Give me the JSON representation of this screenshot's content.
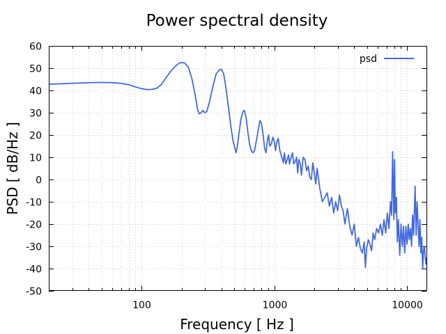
{
  "chart_data": {
    "type": "line",
    "title": "Power spectral density",
    "xlabel": "Frequency [ Hz ]",
    "ylabel": "PSD [ dB/Hz ]",
    "x_scale": "log",
    "xlim": [
      20,
      14000
    ],
    "ylim": [
      -50,
      60
    ],
    "x_ticks": [
      100,
      1000,
      10000
    ],
    "x_tick_labels": [
      "100",
      "1000",
      "10000"
    ],
    "y_ticks": [
      -50,
      -40,
      -30,
      -20,
      -10,
      0,
      10,
      20,
      30,
      40,
      50,
      60
    ],
    "y_tick_labels": [
      "-50",
      "-40",
      "-30",
      "-20",
      "-10",
      "0",
      "10",
      "20",
      "30",
      "40",
      "50",
      "60"
    ],
    "grid": true,
    "legend_position": "top-right",
    "series": [
      {
        "name": "psd",
        "color": "#4169e1",
        "points": [
          [
            20,
            42.8
          ],
          [
            30,
            43.2
          ],
          [
            40,
            43.5
          ],
          [
            50,
            43.6
          ],
          [
            60,
            43.5
          ],
          [
            70,
            43.2
          ],
          [
            80,
            42.6
          ],
          [
            90,
            41.6
          ],
          [
            100,
            40.8
          ],
          [
            110,
            40.4
          ],
          [
            120,
            40.5
          ],
          [
            130,
            41.0
          ],
          [
            140,
            42.5
          ],
          [
            150,
            45.0
          ],
          [
            165,
            48.5
          ],
          [
            180,
            51.0
          ],
          [
            195,
            52.5
          ],
          [
            210,
            52.4
          ],
          [
            225,
            50.5
          ],
          [
            240,
            45.0
          ],
          [
            255,
            37.0
          ],
          [
            265,
            31.0
          ],
          [
            272,
            29.5
          ],
          [
            280,
            30.0
          ],
          [
            290,
            31.0
          ],
          [
            300,
            30.0
          ],
          [
            310,
            30.5
          ],
          [
            325,
            35.0
          ],
          [
            345,
            42.0
          ],
          [
            365,
            47.5
          ],
          [
            385,
            49.3
          ],
          [
            400,
            49.5
          ],
          [
            415,
            47.5
          ],
          [
            430,
            42.0
          ],
          [
            450,
            33.0
          ],
          [
            470,
            24.0
          ],
          [
            490,
            17.0
          ],
          [
            505,
            14.0
          ],
          [
            515,
            12.0
          ],
          [
            525,
            14.5
          ],
          [
            540,
            20.0
          ],
          [
            560,
            27.0
          ],
          [
            580,
            30.5
          ],
          [
            595,
            31.0
          ],
          [
            612,
            28.0
          ],
          [
            630,
            22.0
          ],
          [
            650,
            16.0
          ],
          [
            670,
            13.0
          ],
          [
            690,
            12.0
          ],
          [
            710,
            13.0
          ],
          [
            735,
            18.0
          ],
          [
            760,
            23.0
          ],
          [
            780,
            26.5
          ],
          [
            800,
            25.0
          ],
          [
            820,
            21.0
          ],
          [
            845,
            14.0
          ],
          [
            865,
            12.0
          ],
          [
            890,
            18.0
          ],
          [
            905,
            20.0
          ],
          [
            925,
            15.0
          ],
          [
            950,
            16.0
          ],
          [
            975,
            19.0
          ],
          [
            1000,
            17.0
          ],
          [
            1020,
            13.0
          ],
          [
            1045,
            17.0
          ],
          [
            1070,
            18.5
          ],
          [
            1100,
            13.0
          ],
          [
            1140,
            10.0
          ],
          [
            1170,
            7.5
          ],
          [
            1190,
            12.0
          ],
          [
            1220,
            7.0
          ],
          [
            1250,
            9.0
          ],
          [
            1280,
            11.0
          ],
          [
            1300,
            7.0
          ],
          [
            1330,
            9.5
          ],
          [
            1370,
            12.0
          ],
          [
            1400,
            7.0
          ],
          [
            1430,
            8.0
          ],
          [
            1470,
            10.0
          ],
          [
            1500,
            3.0
          ],
          [
            1530,
            9.0
          ],
          [
            1570,
            7.0
          ],
          [
            1600,
            2.0
          ],
          [
            1650,
            10.0
          ],
          [
            1700,
            9.0
          ],
          [
            1750,
            4.0
          ],
          [
            1800,
            6.0
          ],
          [
            1850,
            1.0
          ],
          [
            1900,
            0.0
          ],
          [
            1950,
            7.5
          ],
          [
            2000,
            3.0
          ],
          [
            2050,
            -2.0
          ],
          [
            2100,
            5.0
          ],
          [
            2200,
            -4.0
          ],
          [
            2300,
            -10.0
          ],
          [
            2400,
            -8.0
          ],
          [
            2500,
            -6.0
          ],
          [
            2600,
            -12.0
          ],
          [
            2700,
            -8.0
          ],
          [
            2800,
            -15.0
          ],
          [
            2900,
            -10.0
          ],
          [
            3000,
            -14.0
          ],
          [
            3100,
            -7.0
          ],
          [
            3200,
            -12.0
          ],
          [
            3300,
            -14.0
          ],
          [
            3400,
            -20.0
          ],
          [
            3550,
            -13.0
          ],
          [
            3700,
            -21.0
          ],
          [
            3850,
            -25.0
          ],
          [
            4000,
            -20.0
          ],
          [
            4150,
            -30.0
          ],
          [
            4300,
            -26.0
          ],
          [
            4450,
            -31.0
          ],
          [
            4600,
            -33.0
          ],
          [
            4750,
            -28.0
          ],
          [
            4850,
            -39.5
          ],
          [
            4950,
            -31.0
          ],
          [
            5100,
            -27.0
          ],
          [
            5250,
            -29.0
          ],
          [
            5400,
            -32.0
          ],
          [
            5550,
            -24.0
          ],
          [
            5700,
            -27.0
          ],
          [
            5900,
            -22.0
          ],
          [
            6100,
            -24.0
          ],
          [
            6300,
            -20.0
          ],
          [
            6500,
            -25.0
          ],
          [
            6700,
            -18.0
          ],
          [
            6900,
            -24.0
          ],
          [
            7100,
            -15.0
          ],
          [
            7300,
            -22.0
          ],
          [
            7500,
            -10.0
          ],
          [
            7650,
            -16.0
          ],
          [
            7780,
            12.5
          ],
          [
            7850,
            0.0
          ],
          [
            7950,
            -18.0
          ],
          [
            8050,
            9.0
          ],
          [
            8150,
            -15.0
          ],
          [
            8300,
            -8.0
          ],
          [
            8450,
            -28.0
          ],
          [
            8600,
            -18.0
          ],
          [
            8800,
            -34.0
          ],
          [
            9000,
            -20.0
          ],
          [
            9200,
            -30.0
          ],
          [
            9400,
            -21.0
          ],
          [
            9600,
            -33.0
          ],
          [
            9800,
            -21.0
          ],
          [
            10000,
            -29.0
          ],
          [
            10200,
            -20.0
          ],
          [
            10400,
            -27.0
          ],
          [
            10600,
            -22.0
          ],
          [
            10800,
            -30.0
          ],
          [
            11000,
            -16.0
          ],
          [
            11200,
            -25.0
          ],
          [
            11500,
            -3.0
          ],
          [
            11700,
            -25.0
          ],
          [
            11900,
            -10.0
          ],
          [
            12100,
            -20.0
          ],
          [
            12300,
            -30.0
          ],
          [
            12500,
            -18.0
          ],
          [
            12700,
            -33.0
          ],
          [
            12900,
            -26.0
          ],
          [
            13100,
            -40.0
          ],
          [
            13300,
            -32.0
          ],
          [
            13500,
            -30.0
          ],
          [
            13700,
            -35.0
          ],
          [
            13850,
            -38.0
          ],
          [
            14000,
            -35.0
          ]
        ]
      }
    ]
  }
}
